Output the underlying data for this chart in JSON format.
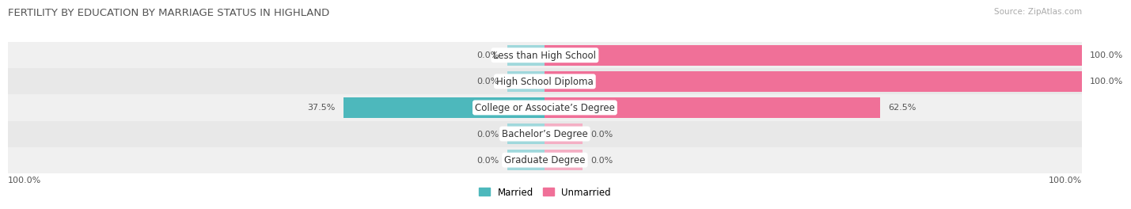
{
  "title": "FERTILITY BY EDUCATION BY MARRIAGE STATUS IN HIGHLAND",
  "source": "Source: ZipAtlas.com",
  "categories": [
    "Less than High School",
    "High School Diploma",
    "College or Associate’s Degree",
    "Bachelor’s Degree",
    "Graduate Degree"
  ],
  "married": [
    0.0,
    0.0,
    37.5,
    0.0,
    0.0
  ],
  "unmarried": [
    100.0,
    100.0,
    62.5,
    0.0,
    0.0
  ],
  "married_color": "#4db8bc",
  "unmarried_color": "#f07098",
  "married_light_color": "#a0d8dc",
  "unmarried_light_color": "#f4afc4",
  "row_bg_even": "#f0f0f0",
  "row_bg_odd": "#e8e8e8",
  "title_color": "#555555",
  "value_color": "#555555",
  "source_color": "#aaaaaa",
  "legend_married": "Married",
  "legend_unmarried": "Unmarried",
  "xlim": [
    -100,
    100
  ],
  "bottom_left_label": "100.0%",
  "bottom_right_label": "100.0%",
  "min_bar_size": 7,
  "figsize": [
    14.06,
    2.69
  ],
  "dpi": 100
}
